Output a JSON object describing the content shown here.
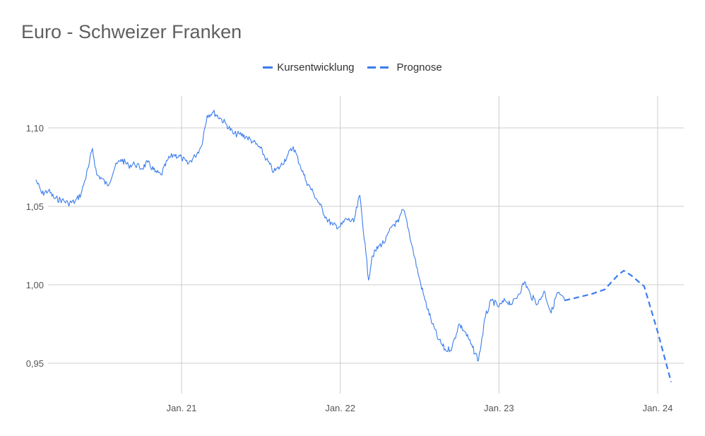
{
  "title": "Euro - Schweizer Franken",
  "legend": [
    {
      "label": "Kursentwicklung",
      "style": "solid"
    },
    {
      "label": "Prognose",
      "style": "dashed"
    }
  ],
  "colors": {
    "series": "#3b7ded",
    "grid": "#cccccc"
  },
  "chart_data": {
    "type": "line",
    "title": "Euro - Schweizer Franken",
    "xlabel": "",
    "ylabel": "",
    "x_tick_labels": [
      "Jan. 21",
      "Jan. 22",
      "Jan. 23",
      "Jan. 24"
    ],
    "y_tick_labels": [
      "1,10",
      "1,05",
      "1,00",
      "0,95"
    ],
    "y_ticks": [
      1.1,
      1.05,
      1.0,
      0.95
    ],
    "ylim": [
      0.93,
      1.12
    ],
    "xlim": [
      "2020-02-15",
      "2024-02-15"
    ],
    "grid": true,
    "legend_position": "top",
    "series": [
      {
        "name": "Kursentwicklung",
        "style": "solid",
        "points": [
          [
            "2020-02-01",
            1.067
          ],
          [
            "2020-02-15",
            1.058
          ],
          [
            "2020-03-01",
            1.06
          ],
          [
            "2020-03-15",
            1.055
          ],
          [
            "2020-04-01",
            1.054
          ],
          [
            "2020-04-15",
            1.052
          ],
          [
            "2020-05-01",
            1.053
          ],
          [
            "2020-05-15",
            1.058
          ],
          [
            "2020-06-01",
            1.075
          ],
          [
            "2020-06-10",
            1.087
          ],
          [
            "2020-06-20",
            1.07
          ],
          [
            "2020-07-01",
            1.068
          ],
          [
            "2020-07-15",
            1.063
          ],
          [
            "2020-08-01",
            1.075
          ],
          [
            "2020-08-15",
            1.08
          ],
          [
            "2020-09-01",
            1.076
          ],
          [
            "2020-09-15",
            1.077
          ],
          [
            "2020-10-01",
            1.074
          ],
          [
            "2020-10-15",
            1.078
          ],
          [
            "2020-11-01",
            1.072
          ],
          [
            "2020-11-15",
            1.07
          ],
          [
            "2020-12-01",
            1.08
          ],
          [
            "2020-12-15",
            1.083
          ],
          [
            "2021-01-01",
            1.081
          ],
          [
            "2021-01-15",
            1.077
          ],
          [
            "2021-02-01",
            1.082
          ],
          [
            "2021-02-15",
            1.088
          ],
          [
            "2021-03-01",
            1.108
          ],
          [
            "2021-03-15",
            1.11
          ],
          [
            "2021-04-01",
            1.106
          ],
          [
            "2021-04-15",
            1.102
          ],
          [
            "2021-05-01",
            1.096
          ],
          [
            "2021-05-15",
            1.096
          ],
          [
            "2021-06-01",
            1.094
          ],
          [
            "2021-06-15",
            1.091
          ],
          [
            "2021-07-01",
            1.087
          ],
          [
            "2021-07-15",
            1.08
          ],
          [
            "2021-08-01",
            1.072
          ],
          [
            "2021-08-15",
            1.075
          ],
          [
            "2021-09-01",
            1.082
          ],
          [
            "2021-09-15",
            1.088
          ],
          [
            "2021-10-01",
            1.076
          ],
          [
            "2021-10-15",
            1.066
          ],
          [
            "2021-11-01",
            1.058
          ],
          [
            "2021-11-15",
            1.051
          ],
          [
            "2021-12-01",
            1.042
          ],
          [
            "2021-12-15",
            1.038
          ],
          [
            "2022-01-01",
            1.037
          ],
          [
            "2022-01-15",
            1.042
          ],
          [
            "2022-02-01",
            1.04
          ],
          [
            "2022-02-15",
            1.057
          ],
          [
            "2022-03-01",
            1.02
          ],
          [
            "2022-03-07",
            1.003
          ],
          [
            "2022-03-15",
            1.018
          ],
          [
            "2022-04-01",
            1.025
          ],
          [
            "2022-04-15",
            1.028
          ],
          [
            "2022-05-01",
            1.038
          ],
          [
            "2022-05-15",
            1.04
          ],
          [
            "2022-05-25",
            1.048
          ],
          [
            "2022-06-01",
            1.043
          ],
          [
            "2022-06-15",
            1.025
          ],
          [
            "2022-07-01",
            1.005
          ],
          [
            "2022-07-15",
            0.99
          ],
          [
            "2022-08-01",
            0.975
          ],
          [
            "2022-08-15",
            0.965
          ],
          [
            "2022-09-01",
            0.958
          ],
          [
            "2022-09-15",
            0.96
          ],
          [
            "2022-10-01",
            0.975
          ],
          [
            "2022-10-15",
            0.97
          ],
          [
            "2022-11-01",
            0.96
          ],
          [
            "2022-11-15",
            0.952
          ],
          [
            "2022-12-01",
            0.98
          ],
          [
            "2022-12-15",
            0.99
          ],
          [
            "2023-01-01",
            0.986
          ],
          [
            "2023-01-15",
            0.99
          ],
          [
            "2023-02-01",
            0.988
          ],
          [
            "2023-02-15",
            0.994
          ],
          [
            "2023-03-01",
            1.002
          ],
          [
            "2023-03-15",
            0.993
          ],
          [
            "2023-04-01",
            0.988
          ],
          [
            "2023-04-15",
            0.996
          ],
          [
            "2023-05-01",
            0.982
          ],
          [
            "2023-05-15",
            0.995
          ],
          [
            "2023-06-01",
            0.99
          ]
        ]
      },
      {
        "name": "Prognose",
        "style": "dashed",
        "points": [
          [
            "2023-06-01",
            0.99
          ],
          [
            "2023-07-01",
            0.992
          ],
          [
            "2023-08-01",
            0.994
          ],
          [
            "2023-09-01",
            0.997
          ],
          [
            "2023-10-01",
            1.006
          ],
          [
            "2023-10-15",
            1.009
          ],
          [
            "2023-11-01",
            1.006
          ],
          [
            "2023-12-01",
            0.999
          ],
          [
            "2024-01-01",
            0.97
          ],
          [
            "2024-02-01",
            0.938
          ]
        ]
      }
    ]
  }
}
